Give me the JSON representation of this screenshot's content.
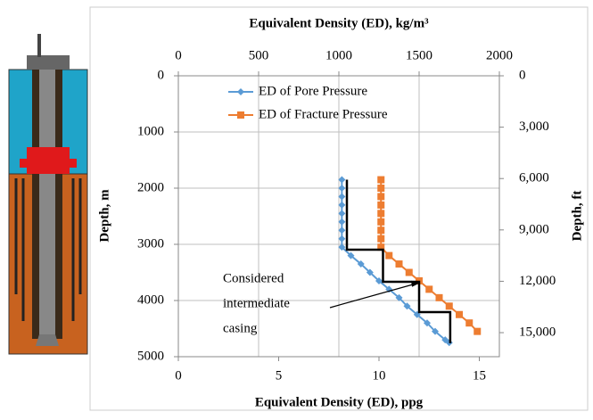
{
  "chart_data": {
    "type": "line",
    "x_title": "Equivalent Density (ED), ppg",
    "x2_title": "Equivalent Density (ED), kg/m³",
    "y_title": "Depth, m",
    "y2_title": "Depth, ft",
    "xlim": [
      0,
      16
    ],
    "xticks": [
      0,
      5,
      10,
      15
    ],
    "x2lim": [
      0,
      2000
    ],
    "x2ticks": [
      0,
      500,
      1000,
      1500,
      2000
    ],
    "ylim": [
      0,
      5000
    ],
    "yticks": [
      0,
      1000,
      2000,
      3000,
      4000,
      5000
    ],
    "y2lim": [
      0,
      16404
    ],
    "y2ticks": [
      0,
      {
        "value": 3000,
        "label": "3,000"
      },
      {
        "value": 6000,
        "label": "6,000"
      },
      {
        "value": 9000,
        "label": "9,000"
      },
      {
        "value": 12000,
        "label": "12,000"
      },
      {
        "value": 15000,
        "label": "15,000"
      }
    ],
    "grid": true,
    "legend": "top-left",
    "series": [
      {
        "name": "ED of Pore Pressure",
        "color": "#5b9bd5",
        "marker": "diamond",
        "x": [
          8.15,
          8.15,
          8.15,
          8.15,
          8.15,
          8.15,
          8.15,
          8.15,
          8.15,
          8.6,
          9.1,
          9.55,
          10.0,
          10.5,
          11.0,
          11.4,
          11.9,
          12.4,
          12.8,
          13.3,
          13.5
        ],
        "y": [
          1850,
          2000,
          2150,
          2300,
          2450,
          2600,
          2750,
          2900,
          3050,
          3200,
          3350,
          3500,
          3650,
          3800,
          3950,
          4100,
          4250,
          4400,
          4550,
          4700,
          4750
        ]
      },
      {
        "name": "ED of Fracture Pressure",
        "color": "#ed7d31",
        "marker": "square",
        "x": [
          10.1,
          10.1,
          10.1,
          10.1,
          10.1,
          10.1,
          10.1,
          10.1,
          10.1,
          10.5,
          11.0,
          11.5,
          12.0,
          12.5,
          13.0,
          13.5,
          14.0,
          14.5,
          14.9
        ],
        "y": [
          1850,
          2000,
          2150,
          2300,
          2450,
          2600,
          2750,
          2900,
          3050,
          3200,
          3350,
          3500,
          3650,
          3800,
          3950,
          4100,
          4250,
          4400,
          4550
        ]
      }
    ],
    "casing_line": {
      "color": "#000000",
      "x": [
        8.4,
        8.4,
        10.2,
        10.2,
        12.0,
        12.0,
        13.55,
        13.55
      ],
      "y": [
        1850,
        3095,
        3095,
        3667,
        3667,
        4206,
        4206,
        4760
      ]
    },
    "annotation": {
      "lines": [
        "Considered",
        "intermediate",
        "casing"
      ],
      "x": 12.0,
      "y": 3980
    }
  }
}
